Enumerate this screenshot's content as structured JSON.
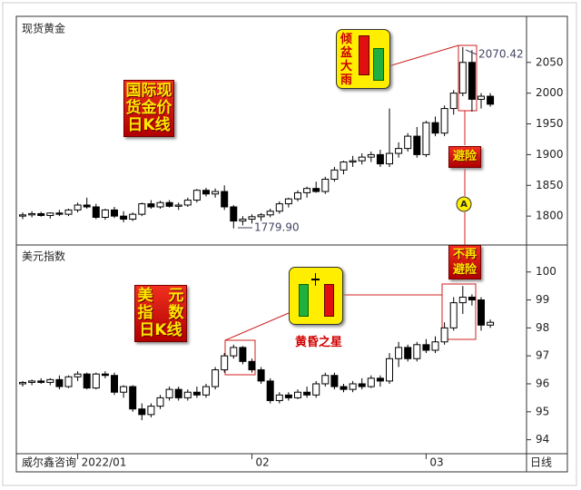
{
  "chart_data": [
    {
      "type": "candlestick",
      "title": "现货黄金",
      "up_color": "#ffffff",
      "down_color": "#000000",
      "open": [
        1800,
        1802,
        1804,
        1801,
        1805,
        1803,
        1810,
        1818,
        1815,
        1798,
        1810,
        1800,
        1795,
        1803,
        1820,
        1815,
        1822,
        1816,
        1818,
        1826,
        1842,
        1836,
        1840,
        1815,
        1792,
        1795,
        1799,
        1802,
        1808,
        1820,
        1828,
        1838,
        1845,
        1840,
        1860,
        1875,
        1888,
        1890,
        1896,
        1900,
        1885,
        1902,
        1910,
        1930,
        1900,
        1952,
        1935,
        1975,
        2000,
        2050,
        1990,
        1995
      ],
      "high": [
        1806,
        1808,
        1807,
        1806,
        1810,
        1812,
        1822,
        1830,
        1820,
        1812,
        1815,
        1808,
        1806,
        1822,
        1826,
        1825,
        1826,
        1822,
        1830,
        1844,
        1846,
        1845,
        1850,
        1818,
        1800,
        1803,
        1805,
        1812,
        1824,
        1830,
        1842,
        1848,
        1856,
        1864,
        1880,
        1890,
        1898,
        1902,
        1905,
        1908,
        1975,
        1920,
        1935,
        1945,
        1955,
        1962,
        1980,
        2005,
        2075,
        2070,
        2000,
        2000
      ],
      "low": [
        1795,
        1798,
        1799,
        1796,
        1800,
        1800,
        1806,
        1812,
        1795,
        1794,
        1797,
        1790,
        1792,
        1800,
        1812,
        1812,
        1814,
        1810,
        1815,
        1822,
        1832,
        1830,
        1810,
        1780,
        1785,
        1788,
        1792,
        1798,
        1804,
        1814,
        1824,
        1830,
        1838,
        1836,
        1856,
        1868,
        1880,
        1884,
        1888,
        1880,
        1880,
        1895,
        1905,
        1895,
        1896,
        1930,
        1930,
        1965,
        1995,
        1970,
        1975,
        1978
      ],
      "close": [
        1802,
        1804,
        1801,
        1805,
        1803,
        1810,
        1818,
        1815,
        1798,
        1810,
        1800,
        1795,
        1803,
        1820,
        1815,
        1822,
        1816,
        1818,
        1826,
        1842,
        1836,
        1840,
        1815,
        1792,
        1795,
        1799,
        1802,
        1808,
        1820,
        1828,
        1838,
        1845,
        1840,
        1860,
        1875,
        1888,
        1890,
        1896,
        1900,
        1885,
        1902,
        1910,
        1930,
        1900,
        1952,
        1935,
        1975,
        2000,
        2050,
        1990,
        1995,
        1982
      ],
      "ylim": [
        1753,
        2122
      ],
      "yticks": [
        1800,
        1850,
        1900,
        1950,
        2000,
        2050
      ],
      "annotations": [
        "2070.42",
        "1779.90"
      ]
    },
    {
      "type": "candlestick",
      "title": "美元指数",
      "up_color": "#ffffff",
      "down_color": "#000000",
      "categories": [
        null,
        null,
        null,
        null,
        null,
        null,
        "2022/01",
        null,
        null,
        null,
        null,
        null,
        null,
        null,
        null,
        null,
        null,
        null,
        null,
        null,
        null,
        null,
        null,
        null,
        null,
        "02",
        null,
        null,
        null,
        null,
        null,
        null,
        null,
        null,
        null,
        null,
        null,
        null,
        null,
        null,
        null,
        null,
        null,
        null,
        "03",
        null,
        null,
        null,
        null,
        null,
        null,
        null
      ],
      "open": [
        96.0,
        96.05,
        96.1,
        96.05,
        96.15,
        95.9,
        96.25,
        96.35,
        95.85,
        96.35,
        96.3,
        95.7,
        95.9,
        95.1,
        94.9,
        95.2,
        95.5,
        95.8,
        95.5,
        95.7,
        95.6,
        95.9,
        96.5,
        97.0,
        97.3,
        96.8,
        96.5,
        96.1,
        95.4,
        95.6,
        95.5,
        95.7,
        95.6,
        96.0,
        96.3,
        95.9,
        95.8,
        96.0,
        95.9,
        96.2,
        96.1,
        96.9,
        97.3,
        96.9,
        97.4,
        97.2,
        97.5,
        98.0,
        98.9,
        99.1,
        99.0,
        98.1
      ],
      "high": [
        96.1,
        96.15,
        96.2,
        96.2,
        96.3,
        96.3,
        96.45,
        96.4,
        96.4,
        96.45,
        96.4,
        95.95,
        95.95,
        95.3,
        95.3,
        95.6,
        95.9,
        95.9,
        95.8,
        95.9,
        96.0,
        96.6,
        97.1,
        97.4,
        97.35,
        96.9,
        96.6,
        96.2,
        95.7,
        95.7,
        95.8,
        95.9,
        96.1,
        96.4,
        96.4,
        96.0,
        96.1,
        96.2,
        96.3,
        96.3,
        97.1,
        97.5,
        97.4,
        97.5,
        97.6,
        97.7,
        98.2,
        99.1,
        99.5,
        99.2,
        99.1,
        98.3
      ],
      "low": [
        95.9,
        95.95,
        96.0,
        95.95,
        95.8,
        95.85,
        96.1,
        95.8,
        95.8,
        96.2,
        95.6,
        95.5,
        95.0,
        94.7,
        94.8,
        95.1,
        95.4,
        95.4,
        95.4,
        95.5,
        95.5,
        95.8,
        96.4,
        96.9,
        96.7,
        96.4,
        96.0,
        95.3,
        95.3,
        95.4,
        95.45,
        95.5,
        95.5,
        95.9,
        95.8,
        95.7,
        95.7,
        95.8,
        95.85,
        95.9,
        96.0,
        96.6,
        96.8,
        96.8,
        97.1,
        97.1,
        97.4,
        97.9,
        98.5,
        98.8,
        97.9,
        98.0
      ],
      "close": [
        96.05,
        96.1,
        96.05,
        96.15,
        95.9,
        96.25,
        96.35,
        95.85,
        96.35,
        96.3,
        95.7,
        95.9,
        95.1,
        94.9,
        95.2,
        95.5,
        95.8,
        95.5,
        95.7,
        95.6,
        95.9,
        96.5,
        97.0,
        97.3,
        96.8,
        96.5,
        96.1,
        95.4,
        95.6,
        95.5,
        95.7,
        95.6,
        96.0,
        96.3,
        95.9,
        95.8,
        96.0,
        95.9,
        96.2,
        96.1,
        96.9,
        97.3,
        96.9,
        97.4,
        97.2,
        97.5,
        98.0,
        98.9,
        99.1,
        99.0,
        98.1,
        98.2
      ],
      "ylim": [
        93.5,
        100.9
      ],
      "yticks": [
        94,
        95,
        96,
        97,
        98,
        99,
        100
      ]
    }
  ],
  "callouts": {
    "gold_label": [
      "国际现",
      "货金价",
      "日K线"
    ],
    "rain": [
      "倾",
      "盆",
      "大",
      "雨"
    ],
    "safe_haven": "避险",
    "marker": "A",
    "no_safe_haven": [
      "不再",
      "避险"
    ],
    "dollar_label": [
      "美　元",
      "指　数",
      "日K线"
    ],
    "evening_star": "黄昏之星"
  },
  "footer": {
    "source": "威尔鑫咨询",
    "period": "日线"
  }
}
